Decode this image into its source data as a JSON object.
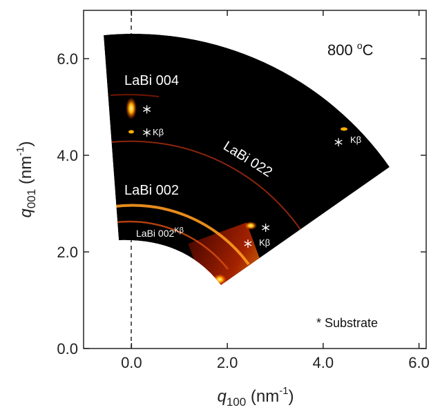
{
  "chart_data": {
    "type": "reciprocal-space-map",
    "x_label": {
      "symbol": "q",
      "sub": "100",
      "unit": " (nm",
      "sup": "-1",
      "close": ")"
    },
    "y_label": {
      "symbol": "q",
      "sub": "001",
      "unit": " (nm",
      "sup": "-1",
      "close": ")"
    },
    "xlim": [
      -1,
      6.15
    ],
    "ylim": [
      0,
      7
    ],
    "xticks": [
      {
        "value": 0,
        "label": "0.0"
      },
      {
        "value": 2,
        "label": "2.0"
      },
      {
        "value": 4,
        "label": "4.0"
      },
      {
        "value": 6,
        "label": "6.0"
      }
    ],
    "yticks": [
      {
        "value": 0,
        "label": "0.0"
      },
      {
        "value": 2,
        "label": "2.0"
      },
      {
        "value": 4,
        "label": "4.0"
      },
      {
        "value": 6,
        "label": "6.0"
      }
    ],
    "temperature": {
      "text": "800 ",
      "sup": "o",
      "tail": "C"
    },
    "peaks": [
      "LaBi 004",
      "LaBi 002",
      "LaBi 022"
    ],
    "kbeta_peak": {
      "text": "LaBi 002",
      "sup": "Kβ"
    },
    "kbeta": [
      "Kβ",
      "Kβ",
      "Kβ"
    ],
    "legend": "* Substrate",
    "substrate_peaks": {
      "x": [
        0.32,
        0.32,
        4.32,
        2.8,
        2.43
      ],
      "y": [
        4.95,
        4.47,
        4.27,
        2.5,
        2.17
      ]
    }
  }
}
